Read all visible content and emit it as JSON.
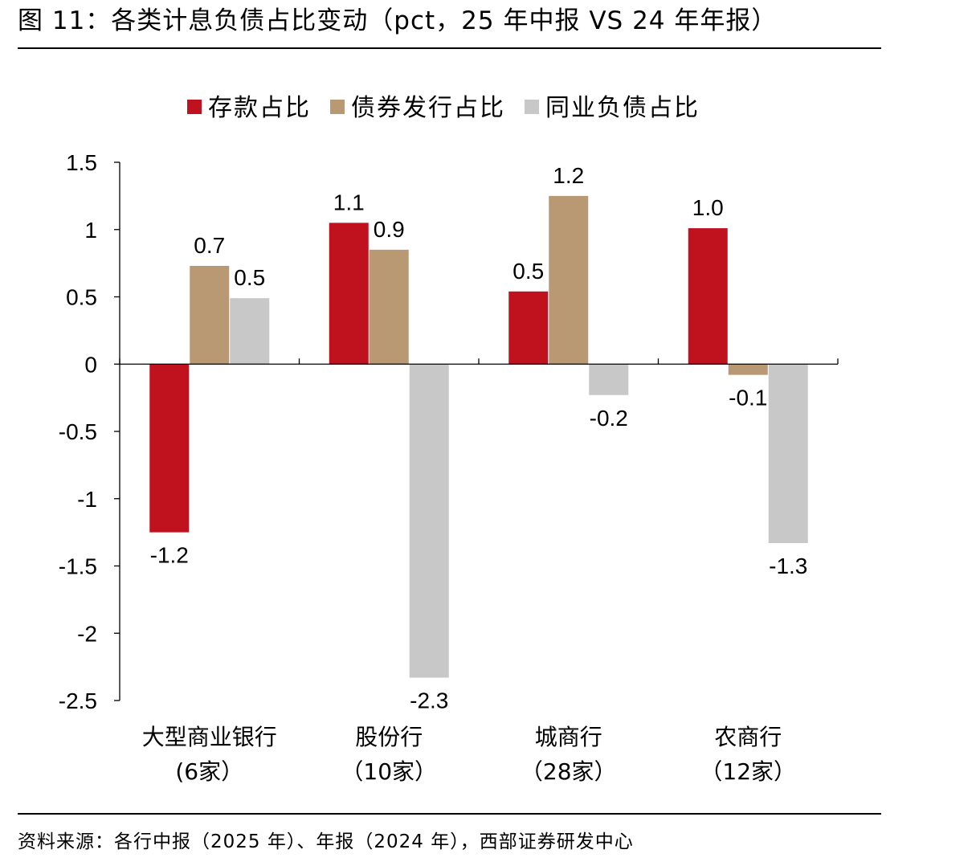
{
  "header": {
    "title": "图 11：各类计息负债占比变动（pct，25 年中报 VS 24 年年报）"
  },
  "footer": {
    "source": "资料来源：各行中报（2025 年）、年报（2024 年），西部证券研发中心"
  },
  "chart_data": {
    "type": "bar",
    "title": "",
    "xlabel": "",
    "ylabel": "",
    "categories": [
      "大型商业银行",
      "股份行",
      "城商行",
      "农商行"
    ],
    "category_sublabels": [
      "(6家）",
      "（10家）",
      "（28家）",
      "（12家）"
    ],
    "series": [
      {
        "name": "存款占比",
        "color": "#c0111f",
        "values": [
          -1.25,
          1.05,
          0.54,
          1.01
        ],
        "labels": [
          "-1.2",
          "1.1",
          "0.5",
          "1.0"
        ]
      },
      {
        "name": "债券发行占比",
        "color": "#b99874",
        "values": [
          0.73,
          0.85,
          1.25,
          -0.08
        ],
        "labels": [
          "0.7",
          "0.9",
          "1.2",
          "-0.1"
        ]
      },
      {
        "name": "同业负债占比",
        "color": "#c8c8c8",
        "values": [
          0.49,
          -2.33,
          -0.23,
          -1.33
        ],
        "labels": [
          "0.5",
          "-2.3",
          "-0.2",
          "-1.3"
        ]
      }
    ],
    "ylim": [
      -2.5,
      1.5
    ],
    "yticks": [
      1.5,
      1,
      0.5,
      0,
      -0.5,
      -1,
      -1.5,
      -2,
      -2.5
    ],
    "ytick_labels": [
      "1.5",
      "1",
      "0.5",
      "0",
      "-0.5",
      "-1",
      "-1.5",
      "-2",
      "-2.5"
    ],
    "grid": false,
    "legend": "top-center"
  }
}
